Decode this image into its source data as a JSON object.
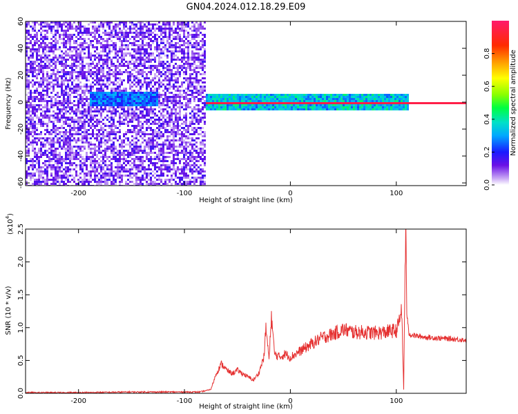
{
  "figure": {
    "title": "GN04.2024.012.18.29.E09"
  },
  "chart_data": [
    {
      "type": "heatmap",
      "title": "GN04.2024.012.18.29.E09",
      "xlabel": "Height of straight line (km)",
      "ylabel": "Frequency (Hz)",
      "xlim": [
        -250,
        166
      ],
      "ylim": [
        -62,
        60
      ],
      "x_ticks": [
        "-200",
        "-100",
        "0",
        "100"
      ],
      "y_ticks": [
        "60",
        "40",
        "20",
        "0",
        "-20",
        "-40",
        "-60"
      ],
      "colorbar": {
        "label": "Normalized spectral amplitude",
        "range": [
          0,
          1
        ],
        "ticks": [
          "0.0",
          "0.2",
          "0.4",
          "0.6",
          "0.8"
        ],
        "colormap": "hsv-reversed (violet at 0, red/magenta at 1)"
      },
      "regions": [
        {
          "x_range": [
            -250,
            -80
          ],
          "description": "broadband noise, low amplitude (0.05-0.2) across all frequencies"
        },
        {
          "x_range": [
            -190,
            -125
          ],
          "freq_range": [
            -2,
            8
          ],
          "amplitude": 0.3
        },
        {
          "x_range": [
            -80,
            110
          ],
          "freq_range": [
            -5,
            7
          ],
          "amplitude": 0.4
        },
        {
          "x_range": [
            -80,
            166
          ],
          "freq_center": 0,
          "amplitude": 0.95
        }
      ],
      "grid": false
    },
    {
      "type": "line",
      "xlabel": "Height of straight line (km)",
      "ylabel": "SNR (10 * v/v)",
      "y_scale_label": "(x10",
      "y_scale_exponent": "4",
      "xlim": [
        -250,
        166
      ],
      "ylim": [
        0,
        2.5
      ],
      "x_ticks": [
        "-200",
        "-100",
        "0",
        "100"
      ],
      "y_ticks": [
        "0.0",
        "0.5",
        "1.0",
        "1.5",
        "2.0",
        "2.5"
      ],
      "grid": false,
      "series": [
        {
          "color": "#e53030",
          "points": [
            [
              -250,
              0.01
            ],
            [
              -200,
              0.01
            ],
            [
              -150,
              0.02
            ],
            [
              -100,
              0.02
            ],
            [
              -85,
              0.02
            ],
            [
              -75,
              0.06
            ],
            [
              -70,
              0.3
            ],
            [
              -65,
              0.45
            ],
            [
              -60,
              0.35
            ],
            [
              -55,
              0.3
            ],
            [
              -50,
              0.35
            ],
            [
              -45,
              0.3
            ],
            [
              -40,
              0.25
            ],
            [
              -35,
              0.2
            ],
            [
              -30,
              0.3
            ],
            [
              -25,
              0.55
            ],
            [
              -23,
              1.0
            ],
            [
              -20,
              0.5
            ],
            [
              -18,
              1.2
            ],
            [
              -15,
              0.6
            ],
            [
              -10,
              0.55
            ],
            [
              -5,
              0.6
            ],
            [
              0,
              0.55
            ],
            [
              5,
              0.6
            ],
            [
              10,
              0.65
            ],
            [
              20,
              0.75
            ],
            [
              30,
              0.85
            ],
            [
              40,
              0.9
            ],
            [
              50,
              0.97
            ],
            [
              60,
              0.93
            ],
            [
              70,
              0.93
            ],
            [
              80,
              0.92
            ],
            [
              90,
              0.93
            ],
            [
              95,
              0.95
            ],
            [
              100,
              0.95
            ],
            [
              103,
              1.1
            ],
            [
              105,
              1.3
            ],
            [
              107,
              0.05
            ],
            [
              108,
              1.6
            ],
            [
              109,
              2.5
            ],
            [
              110,
              1.2
            ],
            [
              112,
              0.9
            ],
            [
              120,
              0.87
            ],
            [
              130,
              0.85
            ],
            [
              140,
              0.84
            ],
            [
              150,
              0.83
            ],
            [
              160,
              0.82
            ],
            [
              166,
              0.81
            ]
          ]
        }
      ]
    }
  ]
}
